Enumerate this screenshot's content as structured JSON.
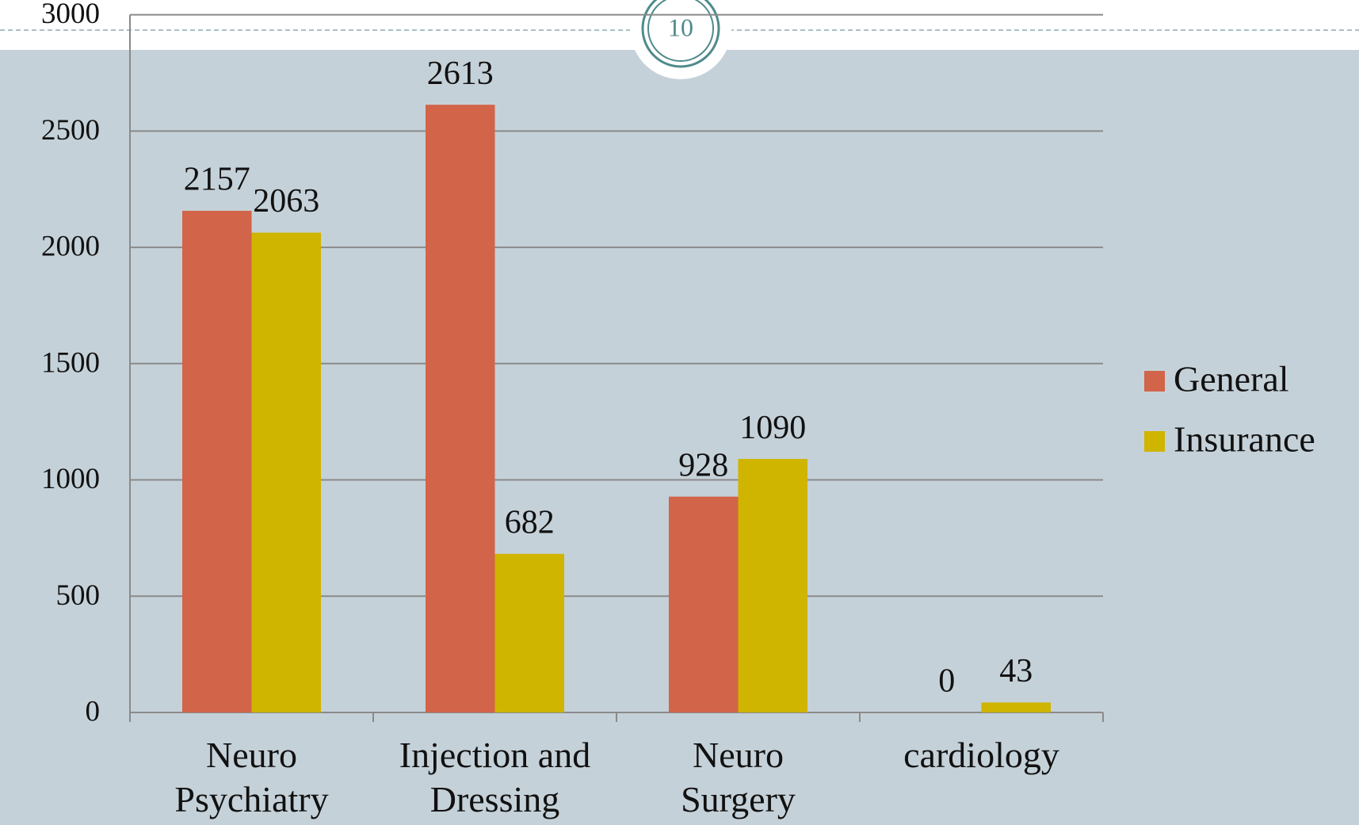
{
  "slide_number": "10",
  "chart_data": {
    "type": "bar",
    "categories": [
      "Neuro\nPsychiatry",
      "Injection and\nDressing",
      "Neuro\nSurgery",
      "cardiology"
    ],
    "series": [
      {
        "name": "General",
        "color": "#d2644a",
        "values": [
          2157,
          2613,
          928,
          0
        ]
      },
      {
        "name": "Insurance",
        "color": "#cfb400",
        "values": [
          2063,
          682,
          1090,
          43
        ]
      }
    ],
    "ylim": [
      0,
      3000
    ],
    "yticks": [
      0,
      500,
      1000,
      1500,
      2000,
      2500,
      3000
    ],
    "grid": true,
    "legend": "right"
  }
}
